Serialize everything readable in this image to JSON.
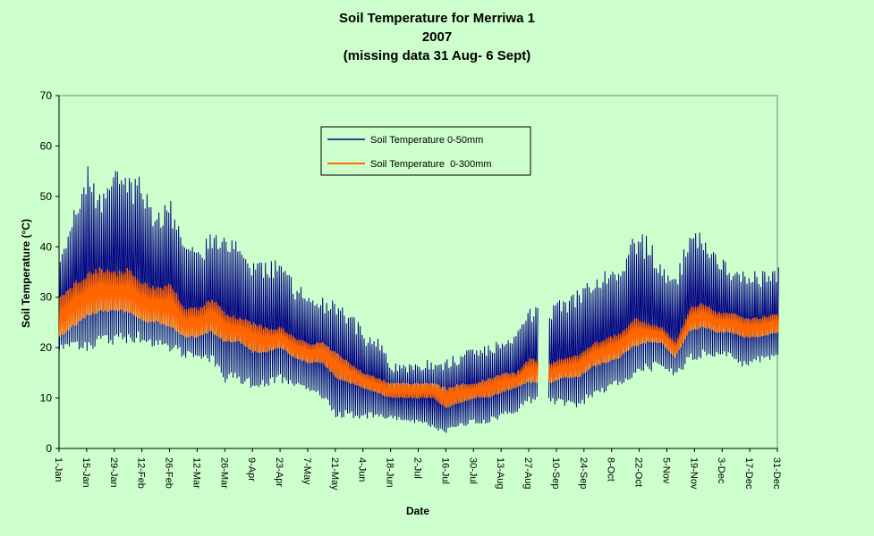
{
  "chart_data": {
    "type": "line",
    "title": "Soil Temperature for Merriwa 1",
    "subtitle": "2007",
    "note": "(missing data 31 Aug- 6 Sept)",
    "xlabel": "Date",
    "ylabel": "Soil Temperature (°C)",
    "ylim": [
      0,
      70
    ],
    "yticks": [
      0,
      10,
      20,
      30,
      40,
      50,
      60,
      70
    ],
    "xlim": [
      "2007-01-01",
      "2007-12-31"
    ],
    "xticks": [
      {
        "date": "2007-01-01",
        "label": "1-Jan"
      },
      {
        "date": "2007-01-15",
        "label": "15-Jan"
      },
      {
        "date": "2007-01-29",
        "label": "29-Jan"
      },
      {
        "date": "2007-02-12",
        "label": "12-Feb"
      },
      {
        "date": "2007-02-26",
        "label": "26-Feb"
      },
      {
        "date": "2007-03-12",
        "label": "12-Mar"
      },
      {
        "date": "2007-03-26",
        "label": "26-Mar"
      },
      {
        "date": "2007-04-09",
        "label": "9-Apr"
      },
      {
        "date": "2007-04-23",
        "label": "23-Apr"
      },
      {
        "date": "2007-05-07",
        "label": "7-May"
      },
      {
        "date": "2007-05-21",
        "label": "21-May"
      },
      {
        "date": "2007-06-04",
        "label": "4-Jun"
      },
      {
        "date": "2007-06-18",
        "label": "18-Jun"
      },
      {
        "date": "2007-07-02",
        "label": "2-Jul"
      },
      {
        "date": "2007-07-16",
        "label": "16-Jul"
      },
      {
        "date": "2007-07-30",
        "label": "30-Jul"
      },
      {
        "date": "2007-08-13",
        "label": "13-Aug"
      },
      {
        "date": "2007-08-27",
        "label": "27-Aug"
      },
      {
        "date": "2007-09-10",
        "label": "10-Sep"
      },
      {
        "date": "2007-09-24",
        "label": "24-Sep"
      },
      {
        "date": "2007-10-08",
        "label": "8-Oct"
      },
      {
        "date": "2007-10-22",
        "label": "22-Oct"
      },
      {
        "date": "2007-11-05",
        "label": "5-Nov"
      },
      {
        "date": "2007-11-19",
        "label": "19-Nov"
      },
      {
        "date": "2007-12-03",
        "label": "3-Dec"
      },
      {
        "date": "2007-12-17",
        "label": "17-Dec"
      },
      {
        "date": "2007-12-31",
        "label": "31-Dec"
      }
    ],
    "grid": false,
    "legend_position": "top-center",
    "missing_range": [
      "2007-08-31",
      "2007-09-06"
    ],
    "series": [
      {
        "name": "Soil Temperature 0-50mm",
        "color": "#000080",
        "daily": [
          {
            "date": "2007-01-01",
            "min": 19,
            "max": 38
          },
          {
            "date": "2007-01-08",
            "min": 20,
            "max": 48
          },
          {
            "date": "2007-01-15",
            "min": 19,
            "max": 57
          },
          {
            "date": "2007-01-22",
            "min": 21,
            "max": 50
          },
          {
            "date": "2007-01-29",
            "min": 20,
            "max": 56
          },
          {
            "date": "2007-02-05",
            "min": 21,
            "max": 54
          },
          {
            "date": "2007-02-12",
            "min": 21,
            "max": 54
          },
          {
            "date": "2007-02-19",
            "min": 20,
            "max": 47
          },
          {
            "date": "2007-02-26",
            "min": 19,
            "max": 50
          },
          {
            "date": "2007-03-05",
            "min": 18,
            "max": 41
          },
          {
            "date": "2007-03-12",
            "min": 18,
            "max": 40
          },
          {
            "date": "2007-03-19",
            "min": 17,
            "max": 43
          },
          {
            "date": "2007-03-26",
            "min": 13,
            "max": 44
          },
          {
            "date": "2007-04-02",
            "min": 13,
            "max": 41
          },
          {
            "date": "2007-04-09",
            "min": 12,
            "max": 37
          },
          {
            "date": "2007-04-16",
            "min": 12,
            "max": 38
          },
          {
            "date": "2007-04-23",
            "min": 13,
            "max": 38
          },
          {
            "date": "2007-04-30",
            "min": 12,
            "max": 33
          },
          {
            "date": "2007-05-07",
            "min": 11,
            "max": 31
          },
          {
            "date": "2007-05-14",
            "min": 10,
            "max": 30
          },
          {
            "date": "2007-05-21",
            "min": 6,
            "max": 29
          },
          {
            "date": "2007-05-28",
            "min": 6,
            "max": 28
          },
          {
            "date": "2007-06-04",
            "min": 6,
            "max": 23
          },
          {
            "date": "2007-06-11",
            "min": 6,
            "max": 23
          },
          {
            "date": "2007-06-18",
            "min": 6,
            "max": 17
          },
          {
            "date": "2007-06-25",
            "min": 5,
            "max": 17
          },
          {
            "date": "2007-07-02",
            "min": 5,
            "max": 17
          },
          {
            "date": "2007-07-09",
            "min": 4,
            "max": 18
          },
          {
            "date": "2007-07-16",
            "min": 3,
            "max": 18
          },
          {
            "date": "2007-07-23",
            "min": 4,
            "max": 19
          },
          {
            "date": "2007-07-30",
            "min": 5,
            "max": 20
          },
          {
            "date": "2007-08-06",
            "min": 5,
            "max": 21
          },
          {
            "date": "2007-08-13",
            "min": 6,
            "max": 22
          },
          {
            "date": "2007-08-20",
            "min": 7,
            "max": 24
          },
          {
            "date": "2007-08-27",
            "min": 9,
            "max": 28
          },
          {
            "date": "2007-09-07",
            "min": 9,
            "max": 29
          },
          {
            "date": "2007-09-14",
            "min": 8,
            "max": 30
          },
          {
            "date": "2007-09-21",
            "min": 8,
            "max": 32
          },
          {
            "date": "2007-09-28",
            "min": 10,
            "max": 34
          },
          {
            "date": "2007-10-05",
            "min": 11,
            "max": 36
          },
          {
            "date": "2007-10-12",
            "min": 12,
            "max": 37
          },
          {
            "date": "2007-10-19",
            "min": 14,
            "max": 43
          },
          {
            "date": "2007-10-26",
            "min": 15,
            "max": 42
          },
          {
            "date": "2007-11-02",
            "min": 16,
            "max": 37
          },
          {
            "date": "2007-11-09",
            "min": 14,
            "max": 34
          },
          {
            "date": "2007-11-16",
            "min": 17,
            "max": 44
          },
          {
            "date": "2007-11-23",
            "min": 18,
            "max": 43
          },
          {
            "date": "2007-11-30",
            "min": 18,
            "max": 39
          },
          {
            "date": "2007-12-07",
            "min": 18,
            "max": 36
          },
          {
            "date": "2007-12-14",
            "min": 16,
            "max": 36
          },
          {
            "date": "2007-12-21",
            "min": 17,
            "max": 35
          },
          {
            "date": "2007-12-31",
            "min": 18,
            "max": 36
          }
        ]
      },
      {
        "name": "Soil Temperature  0-300mm",
        "color": "#ff6600",
        "daily": [
          {
            "date": "2007-01-01",
            "min": 22,
            "max": 30
          },
          {
            "date": "2007-01-08",
            "min": 24,
            "max": 33
          },
          {
            "date": "2007-01-15",
            "min": 26,
            "max": 35
          },
          {
            "date": "2007-01-22",
            "min": 27,
            "max": 36
          },
          {
            "date": "2007-01-29",
            "min": 27,
            "max": 35
          },
          {
            "date": "2007-02-05",
            "min": 27,
            "max": 36
          },
          {
            "date": "2007-02-12",
            "min": 25,
            "max": 33
          },
          {
            "date": "2007-02-19",
            "min": 25,
            "max": 32
          },
          {
            "date": "2007-02-26",
            "min": 24,
            "max": 33
          },
          {
            "date": "2007-03-05",
            "min": 22,
            "max": 28
          },
          {
            "date": "2007-03-12",
            "min": 22,
            "max": 28
          },
          {
            "date": "2007-03-19",
            "min": 23,
            "max": 30
          },
          {
            "date": "2007-03-26",
            "min": 21,
            "max": 27
          },
          {
            "date": "2007-04-02",
            "min": 21,
            "max": 26
          },
          {
            "date": "2007-04-09",
            "min": 19,
            "max": 25
          },
          {
            "date": "2007-04-16",
            "min": 19,
            "max": 24
          },
          {
            "date": "2007-04-23",
            "min": 20,
            "max": 24
          },
          {
            "date": "2007-04-30",
            "min": 18,
            "max": 22
          },
          {
            "date": "2007-05-07",
            "min": 17,
            "max": 21
          },
          {
            "date": "2007-05-14",
            "min": 17,
            "max": 21
          },
          {
            "date": "2007-05-21",
            "min": 14,
            "max": 19
          },
          {
            "date": "2007-05-28",
            "min": 13,
            "max": 17
          },
          {
            "date": "2007-06-04",
            "min": 12,
            "max": 15
          },
          {
            "date": "2007-06-11",
            "min": 11,
            "max": 14
          },
          {
            "date": "2007-06-18",
            "min": 10,
            "max": 13
          },
          {
            "date": "2007-06-25",
            "min": 10,
            "max": 13
          },
          {
            "date": "2007-07-02",
            "min": 10,
            "max": 13
          },
          {
            "date": "2007-07-09",
            "min": 10,
            "max": 13
          },
          {
            "date": "2007-07-16",
            "min": 8,
            "max": 12
          },
          {
            "date": "2007-07-23",
            "min": 9,
            "max": 13
          },
          {
            "date": "2007-07-30",
            "min": 10,
            "max": 13
          },
          {
            "date": "2007-08-06",
            "min": 10,
            "max": 14
          },
          {
            "date": "2007-08-13",
            "min": 11,
            "max": 15
          },
          {
            "date": "2007-08-20",
            "min": 12,
            "max": 15
          },
          {
            "date": "2007-08-27",
            "min": 13,
            "max": 18
          },
          {
            "date": "2007-09-07",
            "min": 13,
            "max": 17
          },
          {
            "date": "2007-09-14",
            "min": 14,
            "max": 18
          },
          {
            "date": "2007-09-21",
            "min": 14,
            "max": 19
          },
          {
            "date": "2007-09-28",
            "min": 16,
            "max": 21
          },
          {
            "date": "2007-10-05",
            "min": 17,
            "max": 22
          },
          {
            "date": "2007-10-12",
            "min": 18,
            "max": 23
          },
          {
            "date": "2007-10-19",
            "min": 20,
            "max": 26
          },
          {
            "date": "2007-10-26",
            "min": 21,
            "max": 25
          },
          {
            "date": "2007-11-02",
            "min": 21,
            "max": 24
          },
          {
            "date": "2007-11-09",
            "min": 18,
            "max": 21
          },
          {
            "date": "2007-11-16",
            "min": 23,
            "max": 28
          },
          {
            "date": "2007-11-23",
            "min": 24,
            "max": 29
          },
          {
            "date": "2007-11-30",
            "min": 23,
            "max": 27
          },
          {
            "date": "2007-12-07",
            "min": 23,
            "max": 27
          },
          {
            "date": "2007-12-14",
            "min": 22,
            "max": 26
          },
          {
            "date": "2007-12-21",
            "min": 22,
            "max": 26
          },
          {
            "date": "2007-12-31",
            "min": 23,
            "max": 27
          }
        ]
      }
    ]
  }
}
